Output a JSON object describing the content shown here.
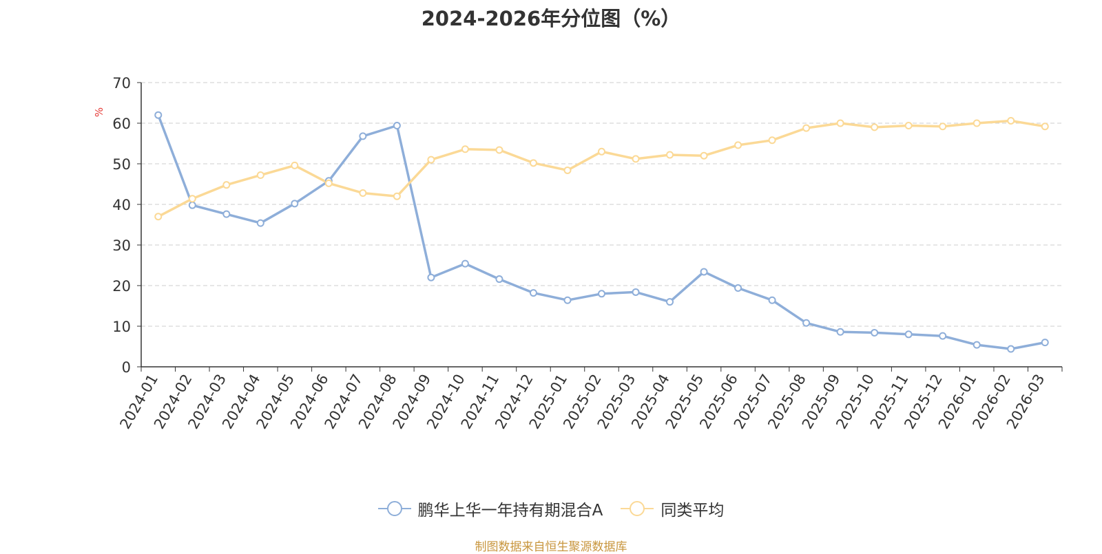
{
  "chart_data": {
    "type": "line",
    "title": "2024-2026年分位图（%）",
    "ylabel": "%",
    "xlabel": "",
    "ylim": [
      0,
      70
    ],
    "yticks": [
      0,
      10,
      20,
      30,
      40,
      50,
      60,
      70
    ],
    "grid": true,
    "legend_position": "bottom",
    "categories": [
      "2024-01",
      "2024-02",
      "2024-03",
      "2024-04",
      "2024-05",
      "2024-06",
      "2024-07",
      "2024-08",
      "2024-09",
      "2024-10",
      "2024-11",
      "2024-12",
      "2025-01",
      "2025-02",
      "2025-03",
      "2025-04",
      "2025-05",
      "2025-06",
      "2025-07",
      "2025-08",
      "2025-09",
      "2025-10",
      "2025-11",
      "2025-12",
      "2026-01",
      "2026-02",
      "2026-03"
    ],
    "series": [
      {
        "name": "鹏华上华一年持有期混合A",
        "color": "#8eaed9",
        "values": [
          62.0,
          39.8,
          37.6,
          35.4,
          40.2,
          45.8,
          56.8,
          59.4,
          22.0,
          25.4,
          21.6,
          18.2,
          16.4,
          18.0,
          18.4,
          16.0,
          23.4,
          19.4,
          16.4,
          10.8,
          8.6,
          8.4,
          8.0,
          7.6,
          5.4,
          4.4,
          6.0
        ]
      },
      {
        "name": "同类平均",
        "color": "#fbd996",
        "values": [
          37.0,
          41.4,
          44.8,
          47.2,
          49.6,
          45.2,
          42.8,
          42.0,
          51.0,
          53.6,
          53.4,
          50.2,
          48.4,
          53.0,
          51.2,
          52.2,
          52.0,
          54.6,
          55.8,
          58.8,
          60.0,
          59.0,
          59.4,
          59.2,
          60.0,
          60.6,
          59.2
        ]
      }
    ]
  },
  "footer": {
    "source_text": "制图数据来自恒生聚源数据库"
  },
  "colors": {
    "ylabel": "#e53935",
    "grid": "#cccccc",
    "axis": "#333333"
  }
}
